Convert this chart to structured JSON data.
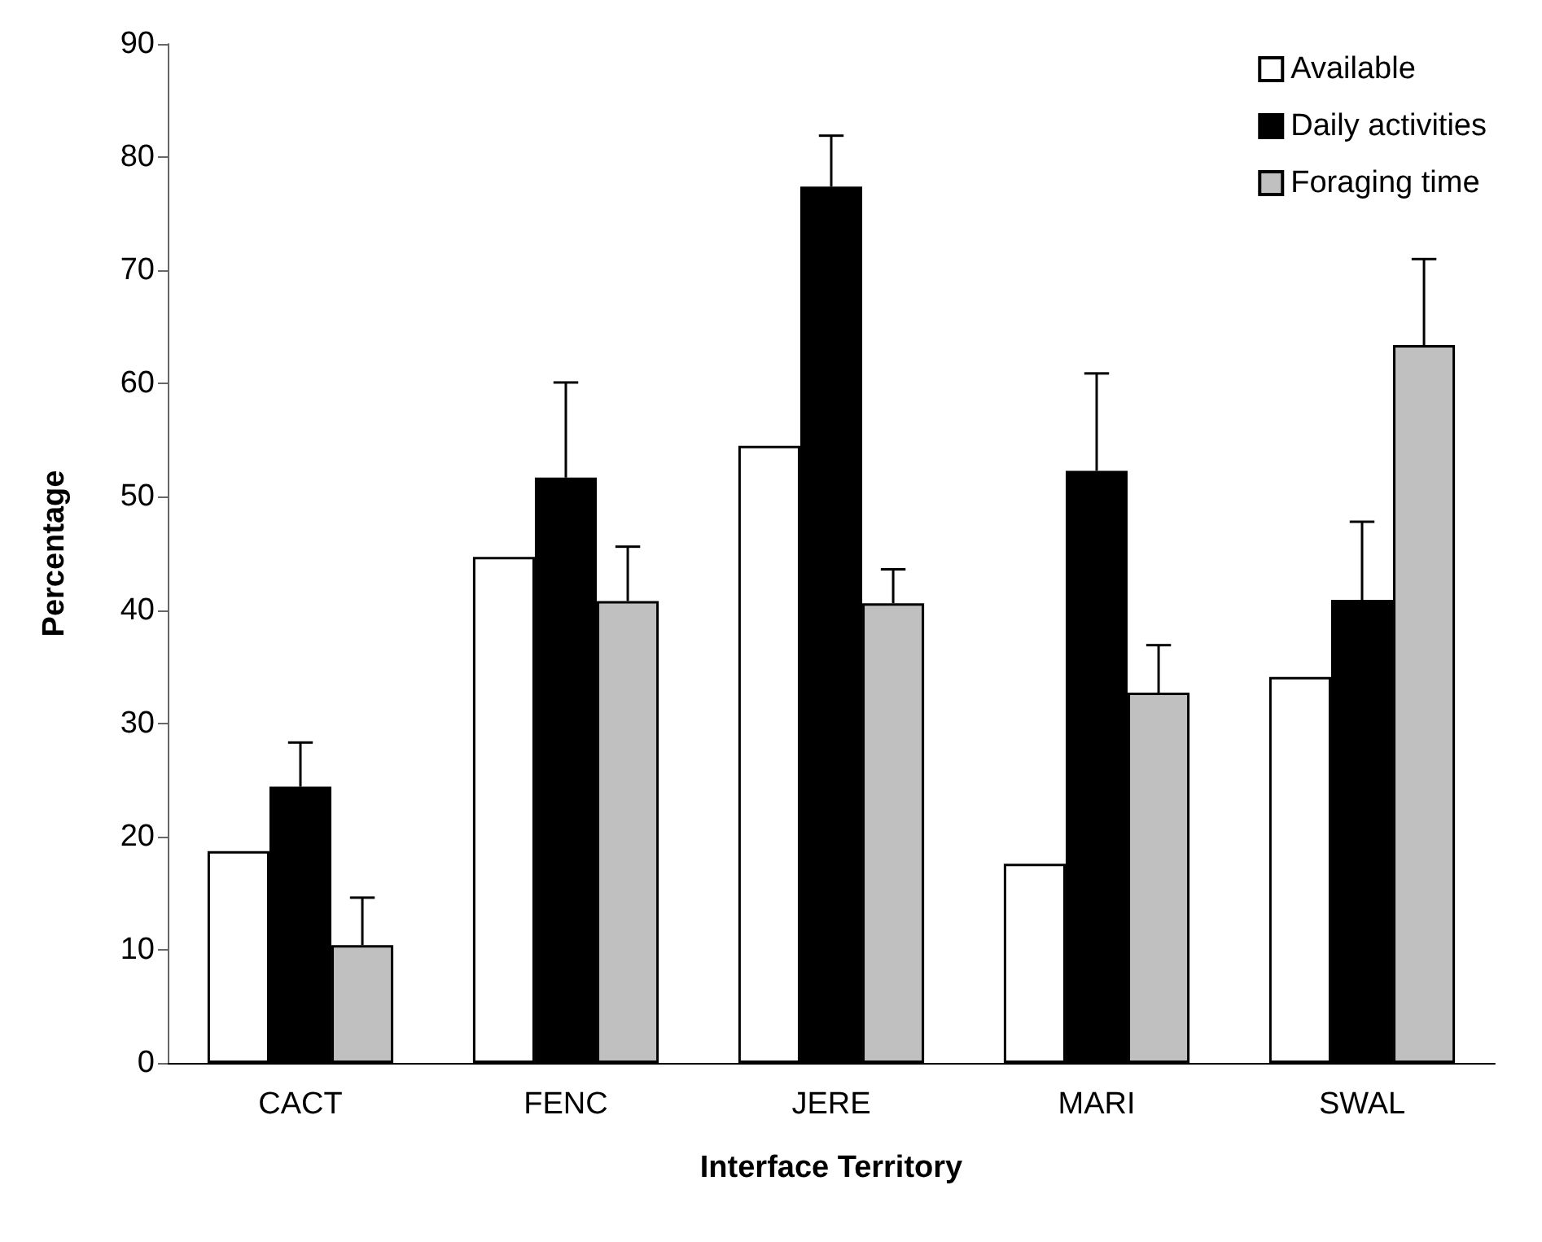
{
  "chart_data": {
    "type": "bar",
    "xlabel": "Interface Territory",
    "ylabel": "Percentage",
    "categories": [
      "CACT",
      "FENC",
      "JERE",
      "MARI",
      "SWAL"
    ],
    "series": [
      {
        "name": "Available",
        "color": "#ffffff",
        "values": [
          18.7,
          44.7,
          54.5,
          17.6,
          34.1
        ]
      },
      {
        "name": "Daily activities",
        "color": "#000000",
        "values": [
          24.4,
          51.7,
          77.4,
          52.3,
          40.9
        ],
        "errors": [
          [
            24.4,
            28.3
          ],
          [
            51.7,
            60.1
          ],
          [
            77.4,
            81.9
          ],
          [
            52.3,
            60.9
          ],
          [
            40.9,
            47.8
          ]
        ]
      },
      {
        "name": "Foraging time",
        "color": "#c0c0c0",
        "values": [
          10.4,
          40.8,
          40.6,
          32.7,
          63.4
        ],
        "errors": [
          [
            10.4,
            14.6
          ],
          [
            40.8,
            45.6
          ],
          [
            40.6,
            43.6
          ],
          [
            32.7,
            36.9
          ],
          [
            63.4,
            71.0
          ]
        ]
      }
    ],
    "ylim": [
      0,
      90
    ],
    "yticks": [
      0,
      10,
      20,
      30,
      40,
      50,
      60,
      70,
      80,
      90
    ],
    "grid": false,
    "legend": "top right"
  }
}
